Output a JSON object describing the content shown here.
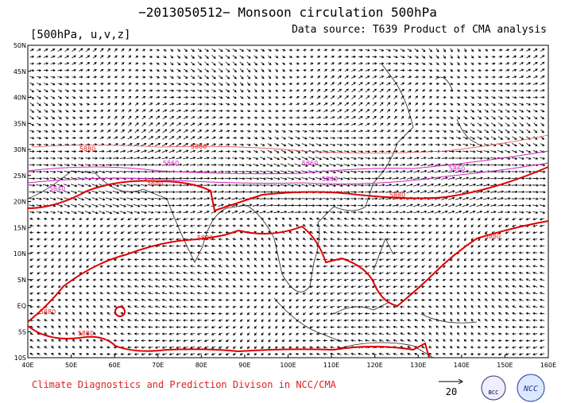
{
  "header": {
    "title": "−2013050512−  Monsoon circulation 500hPa",
    "subtitle": "[500hPa, u,v,z]",
    "source": "Data source: T639 Product of CMA analysis"
  },
  "map": {
    "lon_labels": [
      "40E",
      "50E",
      "60E",
      "70E",
      "80E",
      "90E",
      "100E",
      "110E",
      "120E",
      "130E",
      "140E",
      "150E",
      "160E"
    ],
    "lat_labels": [
      "50N",
      "45N",
      "40N",
      "35N",
      "30N",
      "25N",
      "20N",
      "15N",
      "10N",
      "5N",
      "EQ",
      "5S",
      "10S"
    ],
    "contour_labels": [
      "5880",
      "5880",
      "5880",
      "5880",
      "5880",
      "5880",
      "5880",
      "5880",
      "5860",
      "5860",
      "5860",
      "5840",
      "5840"
    ]
  },
  "legend": {
    "reference_speed": "20"
  },
  "footer": {
    "credit": "Climate Diagnostics and Prediction Divison in NCC/CMA",
    "logo_left": "BCC",
    "logo_right": "NCC"
  }
}
